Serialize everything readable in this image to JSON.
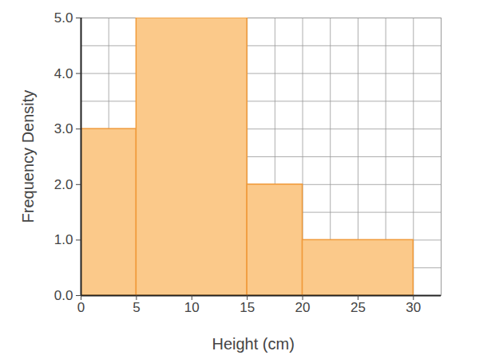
{
  "chart_data": {
    "type": "histogram",
    "x_label": "Height (cm)",
    "y_label": "Frequency Density",
    "bins": [
      0,
      5,
      15,
      20,
      30
    ],
    "values": [
      3,
      5,
      2,
      1
    ],
    "color": "#fbc98a",
    "xlim": [
      0,
      32.5
    ],
    "xticks": [
      0,
      5,
      10,
      15,
      20,
      25,
      30
    ],
    "ylim": [
      0,
      5
    ],
    "yticks": [
      0,
      1,
      2,
      3,
      4,
      5
    ],
    "grid": true
  }
}
